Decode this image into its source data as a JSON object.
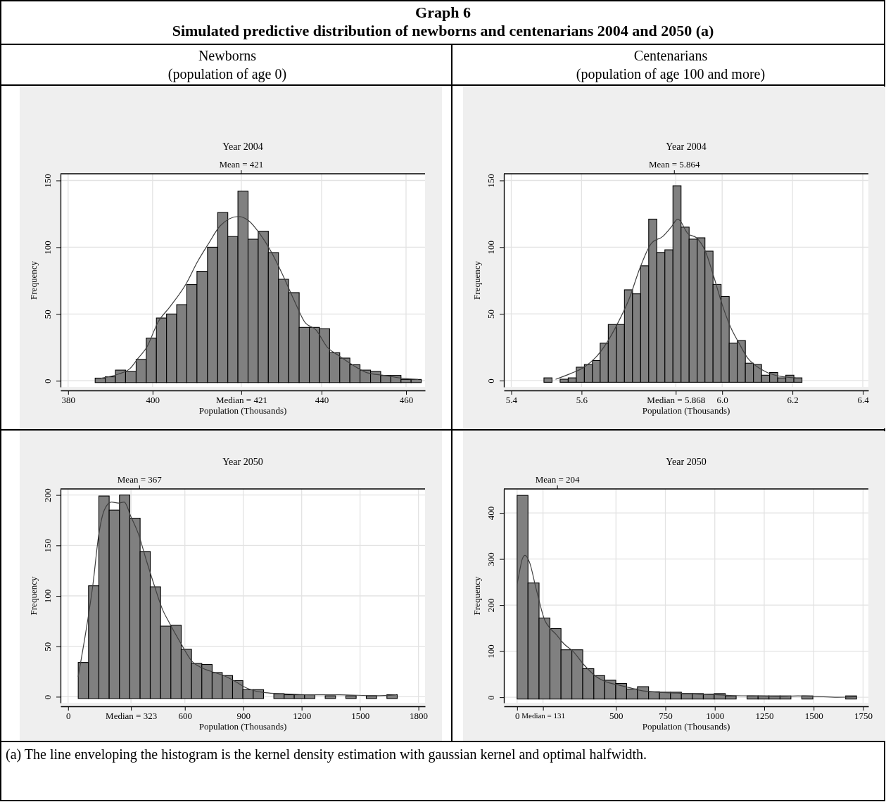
{
  "chart_data": [
    {
      "type": "histogram",
      "title": "Year 2004",
      "xlabel": "Population (Thousands)",
      "ylabel": "Frequency",
      "grid": true,
      "annotations": [
        "Graph 6",
        "Simulated predictive distribution of newborns and centenarians 2004 and 2050 (a)",
        "Newborns",
        "(population of age 0)"
      ],
      "ref_lines": [
        {
          "axis": "x",
          "value": 421,
          "label": "Mean = 421"
        }
      ],
      "xlim": [
        378.2,
        464.5
      ],
      "xticks": [
        380,
        400,
        {
          "value": 421,
          "label": "Median = 421"
        },
        440,
        460
      ],
      "ylim": [
        -4.6,
        155
      ],
      "yticks": [
        0,
        50,
        100,
        150
      ],
      "series": [
        {
          "color": "#808080",
          "bins": [
            386.4,
            388.8,
            391.2,
            393.6,
            396.1,
            398.5,
            400.9,
            403.3,
            405.7,
            408.1,
            410.5,
            413.0,
            415.4,
            417.8,
            420.2,
            422.6,
            425.0,
            427.4,
            429.8,
            432.2,
            434.7,
            437.1,
            439.5,
            441.9,
            444.3,
            446.7,
            449.1,
            451.6,
            454.0,
            456.4,
            458.8,
            461.2,
            463.6
          ],
          "values": [
            2,
            3,
            8,
            7,
            16,
            32,
            47,
            50,
            57,
            72,
            82,
            100,
            126,
            108,
            142,
            106,
            112,
            96,
            76,
            66,
            40,
            40,
            39,
            21,
            17,
            12,
            8,
            7,
            4,
            4,
            1,
            1
          ]
        },
        {
          "type": "line",
          "color": "#404040",
          "x": [
            387.9,
            391.9,
            394.6,
            396.6,
            398.6,
            401.3,
            404,
            408,
            410.6,
            413.3,
            416,
            420.3,
            422.7,
            425.4,
            428,
            430.7,
            433.4,
            436,
            438.7,
            441.4,
            444,
            446.8,
            450.8,
            454.8,
            458.8,
            462.8
          ],
          "values": [
            2,
            5,
            9,
            17,
            25,
            44,
            55,
            73,
            89,
            103,
            116,
            123,
            120,
            110,
            97,
            80,
            61,
            44,
            38,
            25,
            19,
            13,
            6,
            4,
            2,
            1
          ]
        }
      ]
    },
    {
      "type": "histogram",
      "title": "Year 2004",
      "xlabel": "Population (Thousands)",
      "ylabel": "Frequency",
      "grid": true,
      "annotations": [
        "Centenarians",
        "(population of age 100 and more)"
      ],
      "ref_lines": [
        {
          "axis": "x",
          "value": 5.864,
          "label": "Mean = 5.864"
        }
      ],
      "xlim": [
        5.379,
        6.416
      ],
      "xticks": [
        5.4,
        5.6,
        {
          "value": 5.868,
          "label": "Median = 5.868"
        },
        {
          "value": 6,
          "label": "6.0"
        },
        6.2,
        6.4
      ],
      "ylim": [
        -4.8,
        155
      ],
      "yticks": [
        0,
        50,
        100,
        150
      ],
      "series": [
        {
          "color": "#808080",
          "bins": [
            5.493,
            5.516,
            5.539,
            5.562,
            5.585,
            5.608,
            5.631,
            5.653,
            5.676,
            5.699,
            5.722,
            5.745,
            5.768,
            5.791,
            5.814,
            5.837,
            5.86,
            5.883,
            5.906,
            5.929,
            5.951,
            5.974,
            5.997,
            6.02,
            6.043,
            6.066,
            6.089,
            6.112,
            6.135,
            6.158,
            6.181,
            6.204,
            6.227
          ],
          "values": [
            2,
            0,
            1,
            2,
            10,
            12,
            15,
            28,
            42,
            42,
            68,
            65,
            86,
            121,
            96,
            98,
            146,
            115,
            106,
            107,
            97,
            72,
            63,
            28,
            30,
            13,
            12,
            4,
            6,
            2,
            4,
            2
          ]
        },
        {
          "type": "line",
          "color": "#404040",
          "x": [
            5.527,
            5.567,
            5.607,
            5.639,
            5.671,
            5.703,
            5.735,
            5.767,
            5.799,
            5.831,
            5.855,
            5.874,
            5.903,
            5.927,
            5.952,
            5.976,
            6.0,
            6.024,
            6.048,
            6.072,
            6.096,
            6.128,
            6.168,
            6.208
          ],
          "values": [
            1,
            5,
            10,
            17,
            28,
            43,
            61,
            85,
            103,
            108,
            115,
            121,
            110,
            107,
            97,
            78,
            57,
            40,
            28,
            17,
            11,
            6,
            3,
            2
          ]
        }
      ]
    },
    {
      "type": "histogram",
      "title": "Year 2050",
      "xlabel": "Population (Thousands)",
      "ylabel": "Frequency",
      "grid": true,
      "xlim": [
        -39,
        1834
      ],
      "xticks": [
        0,
        {
          "value": 323,
          "label": "Median = 323"
        },
        600,
        900,
        1200,
        1500,
        1800
      ],
      "ref_lines": [
        {
          "axis": "x",
          "value": 367,
          "label": "Mean = 367"
        }
      ],
      "ylim": [
        -6,
        206
      ],
      "yticks": [
        0,
        50,
        100,
        150,
        200
      ],
      "series": [
        {
          "color": "#808080",
          "bins": [
            52,
            105,
            158,
            211,
            264,
            317,
            370,
            422,
            475,
            528,
            581,
            634,
            687,
            740,
            792,
            845,
            898,
            951,
            1004,
            1057,
            1110,
            1162,
            1215,
            1268,
            1321,
            1374,
            1427,
            1480,
            1532,
            1585,
            1638,
            1691
          ],
          "values": [
            34,
            110,
            199,
            185,
            200,
            177,
            144,
            109,
            70,
            71,
            47,
            33,
            32,
            24,
            21,
            16,
            7,
            7,
            0,
            3,
            2,
            2,
            2,
            0,
            1,
            0,
            1,
            0,
            1,
            0,
            2
          ]
        },
        {
          "type": "line",
          "color": "#404040",
          "x": [
            52,
            84,
            128,
            157,
            186,
            222,
            259,
            288,
            324,
            360,
            404,
            440,
            484,
            521,
            579,
            637,
            695,
            753,
            811,
            869,
            913,
            956,
            1015,
            1102,
            1248,
            1393,
            1582,
            1684
          ],
          "values": [
            20,
            56,
            112,
            160,
            185,
            193,
            192,
            193,
            178,
            162,
            134,
            112,
            87,
            73,
            53,
            35,
            28,
            24,
            20,
            14,
            9,
            6,
            4,
            3,
            2,
            2,
            1,
            2
          ]
        }
      ]
    },
    {
      "type": "histogram",
      "title": "Year 2050",
      "xlabel": "Population (Thousands)",
      "ylabel": "Frequency",
      "grid": true,
      "annotations": [
        "(a) The line enveloping the histogram is the kernel density estimation with gaussian kernel and optimal halfwidth."
      ],
      "ref_lines": [
        {
          "axis": "x",
          "value": 204,
          "label": "Mean = 204"
        }
      ],
      "xlim": [
        -67,
        1777
      ],
      "xticks": [
        0,
        {
          "value": 131,
          "label": "Median = 131"
        },
        500,
        750,
        1000,
        1250,
        1500,
        1750
      ],
      "ylim": [
        -12,
        452
      ],
      "yticks": [
        0,
        100,
        200,
        300,
        400
      ],
      "series": [
        {
          "color": "#808080",
          "bins": [
            0,
            55,
            111,
            166,
            222,
            277,
            332,
            388,
            443,
            499,
            554,
            609,
            665,
            720,
            776,
            831,
            886,
            942,
            997,
            1053,
            1108,
            1163,
            1219,
            1274,
            1330,
            1385,
            1440,
            1496,
            1662,
            1717
          ],
          "values": [
            438,
            248,
            172,
            149,
            103,
            103,
            62,
            47,
            37,
            30,
            18,
            23,
            12,
            11,
            11,
            8,
            8,
            7,
            8,
            3,
            0,
            3,
            3,
            3,
            3,
            0,
            3,
            0,
            3
          ]
        },
        {
          "type": "line",
          "color": "#404040",
          "x": [
            0,
            11,
            26,
            40,
            61,
            97,
            140,
            168,
            196,
            239,
            282,
            339,
            396,
            453,
            510,
            567,
            624,
            709,
            809,
            908,
            994,
            1079,
            1193,
            1335,
            1421,
            1506,
            1620,
            1717
          ],
          "values": [
            246,
            270,
            300,
            308,
            295,
            234,
            167,
            149,
            137,
            115,
            100,
            70,
            46,
            33,
            27,
            21,
            15,
            11,
            9,
            7,
            6,
            4,
            3,
            2,
            3,
            2,
            0,
            1
          ]
        }
      ]
    }
  ]
}
